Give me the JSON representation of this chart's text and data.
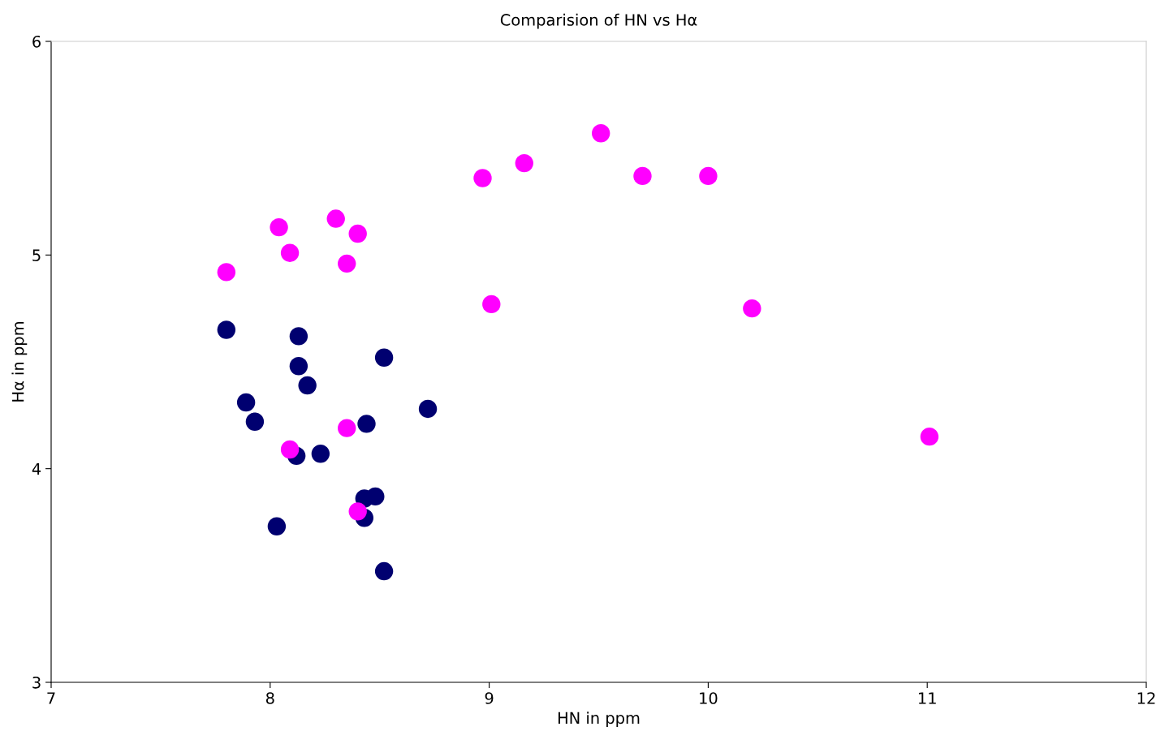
{
  "chart_data": {
    "type": "scatter",
    "title": "Comparision of HN vs Hα",
    "xlabel": "HN in ppm",
    "ylabel": "Hα in ppm",
    "xlim": [
      7,
      12
    ],
    "ylim": [
      3,
      6
    ],
    "xticks": [
      7,
      8,
      9,
      10,
      11,
      12
    ],
    "yticks": [
      3,
      4,
      5,
      6
    ],
    "grid": false,
    "legend": false,
    "marker": "circle",
    "series": [
      {
        "color": "#000070",
        "x": [
          7.8,
          8.13,
          8.13,
          8.17,
          8.52,
          7.89,
          7.93,
          8.72,
          8.44,
          8.12,
          8.23,
          8.43,
          8.48,
          8.43,
          8.03,
          8.52
        ],
        "values": [
          4.65,
          4.62,
          4.48,
          4.39,
          4.52,
          4.31,
          4.22,
          4.28,
          4.21,
          4.06,
          4.07,
          3.86,
          3.87,
          3.77,
          3.73,
          3.52
        ]
      },
      {
        "color": "#ff00ff",
        "x": [
          7.8,
          8.04,
          8.09,
          8.3,
          8.4,
          8.35,
          8.97,
          9.16,
          9.51,
          9.7,
          10.0,
          9.01,
          10.2,
          11.01,
          8.35,
          8.09,
          8.4
        ],
        "values": [
          4.92,
          5.13,
          5.01,
          5.17,
          5.1,
          4.96,
          5.36,
          5.43,
          5.57,
          5.37,
          5.37,
          4.77,
          4.75,
          4.15,
          4.19,
          4.09,
          3.8
        ]
      }
    ]
  }
}
